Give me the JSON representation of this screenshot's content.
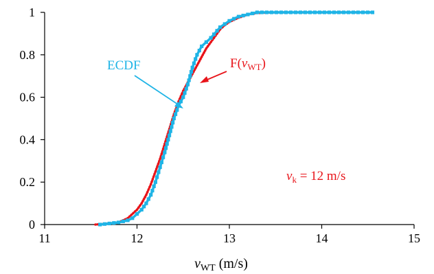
{
  "chart_data": {
    "type": "line",
    "xlabel": {
      "var": "v",
      "sub": "WT",
      "unit": " (m/s)"
    },
    "ylabel": "",
    "xlim": [
      11,
      15
    ],
    "ylim": [
      0,
      1
    ],
    "xticks": [
      "11",
      "12",
      "13",
      "14",
      "15"
    ],
    "yticks": [
      "0",
      "0.2",
      "0.4",
      "0.6",
      "0.8",
      "1"
    ],
    "grid": false,
    "legend": "none",
    "series": [
      {
        "name": "ECDF",
        "color": "#1fb4e6",
        "marker": "square",
        "x": [
          11.6,
          11.7,
          11.8,
          11.9,
          11.95,
          12.0,
          12.05,
          12.1,
          12.15,
          12.2,
          12.25,
          12.3,
          12.35,
          12.4,
          12.45,
          12.5,
          12.55,
          12.6,
          12.65,
          12.7,
          12.75,
          12.8,
          12.9,
          13.0,
          13.1,
          13.2,
          13.3,
          14.55
        ],
        "y": [
          0.0,
          0.005,
          0.01,
          0.02,
          0.03,
          0.05,
          0.07,
          0.1,
          0.14,
          0.2,
          0.27,
          0.34,
          0.42,
          0.5,
          0.56,
          0.6,
          0.66,
          0.74,
          0.8,
          0.84,
          0.86,
          0.88,
          0.93,
          0.96,
          0.98,
          0.99,
          1.0,
          1.0
        ]
      },
      {
        "name": "F(vWT)",
        "color": "#e8141a",
        "marker": "circle",
        "x": [
          11.55,
          11.7,
          11.8,
          11.9,
          12.0,
          12.05,
          12.1,
          12.15,
          12.2,
          12.25,
          12.3,
          12.35,
          12.4,
          12.45,
          12.5,
          12.55,
          12.6,
          12.65,
          12.7,
          12.75,
          12.8,
          12.85,
          12.9,
          12.95,
          13.0,
          13.1,
          13.2,
          13.3,
          13.5,
          14.0,
          14.55
        ],
        "y": [
          0.0,
          0.005,
          0.01,
          0.03,
          0.07,
          0.1,
          0.14,
          0.19,
          0.25,
          0.31,
          0.38,
          0.45,
          0.52,
          0.58,
          0.63,
          0.67,
          0.71,
          0.75,
          0.79,
          0.83,
          0.86,
          0.89,
          0.92,
          0.94,
          0.955,
          0.975,
          0.99,
          0.997,
          1.0,
          1.0,
          1.0
        ]
      }
    ],
    "annotations": {
      "ecdf": {
        "text": "ECDF",
        "color": "#1fb4e6"
      },
      "cdf": {
        "prefix": "F(",
        "var": "v",
        "sub": "WT",
        "suffix": ")",
        "color": "#e8141a"
      },
      "vk": {
        "var": "v",
        "sub": "k",
        "text": " = 12 m/s",
        "color": "#e8141a"
      }
    }
  }
}
